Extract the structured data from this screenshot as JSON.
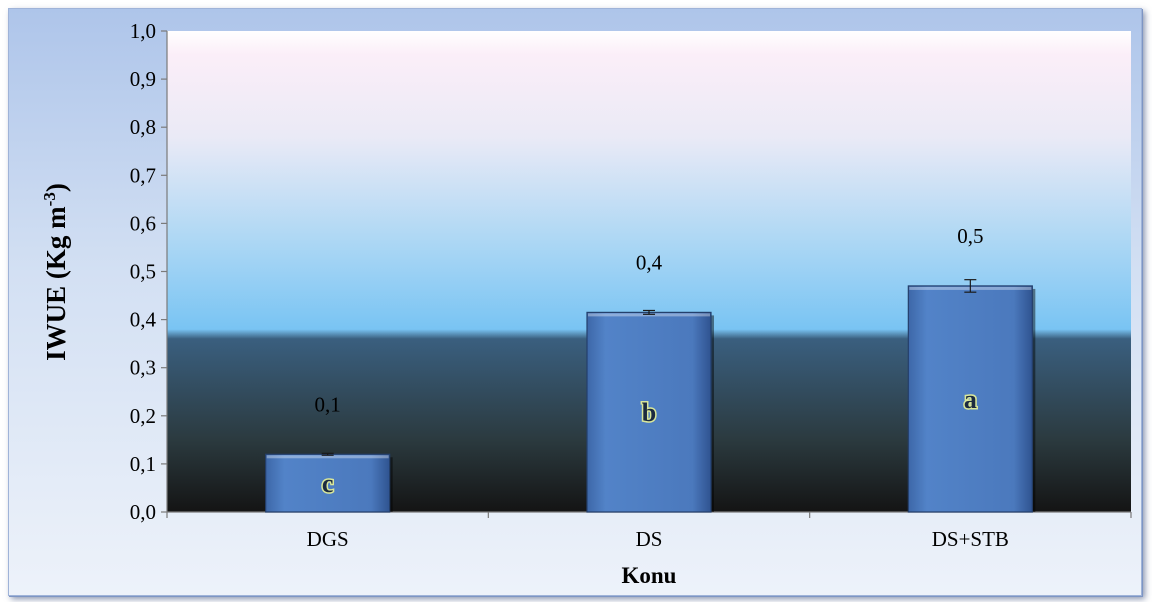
{
  "chart_data": {
    "type": "bar",
    "categories": [
      "DGS",
      "DS",
      "DS+STB"
    ],
    "values": [
      0.12,
      0.415,
      0.47
    ],
    "error": [
      0.002,
      0.004,
      0.013
    ],
    "data_labels": [
      "0,1",
      "0,4",
      "0,5"
    ],
    "significance_letters": [
      "c",
      "b",
      "a"
    ],
    "ylim": [
      0,
      1.0
    ],
    "yticks": [
      0.0,
      0.1,
      0.2,
      0.3,
      0.4,
      0.5,
      0.6,
      0.7,
      0.8,
      0.9,
      1.0
    ],
    "ytick_labels": [
      "0,0",
      "0,1",
      "0,2",
      "0,3",
      "0,4",
      "0,5",
      "0,6",
      "0,7",
      "0,8",
      "0,9",
      "1,0"
    ],
    "xlabel": "Konu",
    "ylabel": "IWUE (Kg m",
    "ylabel_sup": "-3",
    "ylabel_suffix": ")",
    "grid": false,
    "legend": "none",
    "colors": {
      "bar": "#4a78bd",
      "bar_edge": "#243f6b",
      "plot_top": "#ffffff",
      "plot_mid": "#7fc3f2",
      "plot_bottom": "#141414",
      "frame_bg": "#c7d8f0"
    }
  }
}
